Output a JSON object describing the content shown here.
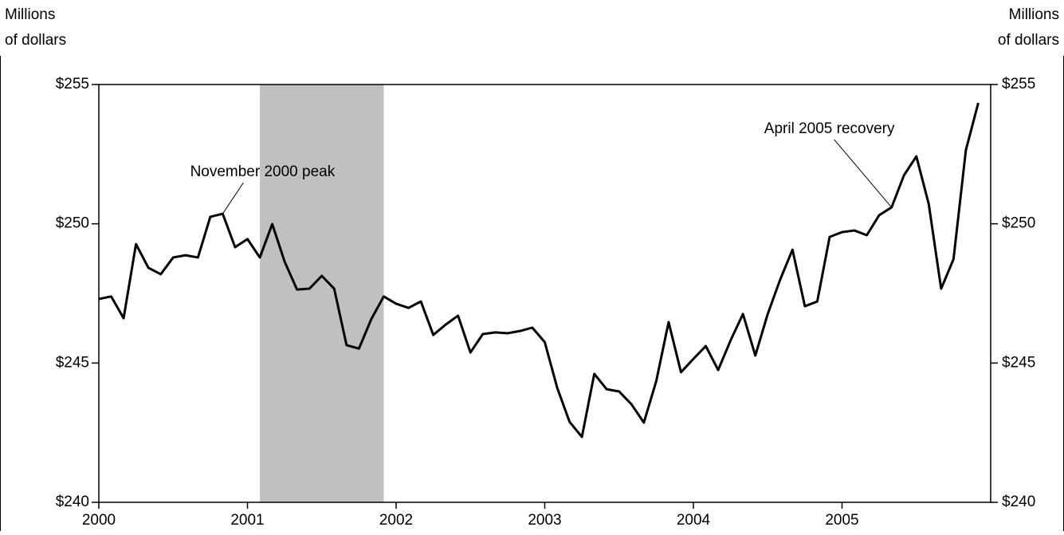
{
  "chart_data": {
    "type": "line",
    "y_label": [
      "Millions",
      "of dollars"
    ],
    "y2_label": [
      "Millions",
      "of dollars"
    ],
    "color": "#000000",
    "shade_color": "#c0c0c0",
    "shaded_x": [
      2001.0833,
      2001.9167
    ],
    "xlim": [
      2000,
      2006
    ],
    "xticks": [
      2000,
      2001,
      2002,
      2003,
      2004,
      2005
    ],
    "ylim": [
      240,
      255
    ],
    "yticks": [
      {
        "value": 240,
        "label": "$240"
      },
      {
        "value": 245,
        "label": "$245"
      },
      {
        "value": 250,
        "label": "$250"
      },
      {
        "value": 255,
        "label": "$255"
      }
    ],
    "y2lim": [
      240,
      255
    ],
    "y2ticks": [
      {
        "value": 240,
        "label": "$240"
      },
      {
        "value": 245,
        "label": "$245"
      },
      {
        "value": 250,
        "label": "$250"
      },
      {
        "value": 255,
        "label": "$255"
      }
    ],
    "x": [
      2000,
      2000.0833,
      2000.1667,
      2000.25,
      2000.3333,
      2000.4167,
      2000.5,
      2000.5833,
      2000.6667,
      2000.75,
      2000.8333,
      2000.9167,
      2001,
      2001.0833,
      2001.1667,
      2001.25,
      2001.3333,
      2001.4167,
      2001.5,
      2001.5833,
      2001.6667,
      2001.75,
      2001.8333,
      2001.9167,
      2002,
      2002.0833,
      2002.1667,
      2002.25,
      2002.3333,
      2002.4167,
      2002.5,
      2002.5833,
      2002.6667,
      2002.75,
      2002.8333,
      2002.9167,
      2003,
      2003.0833,
      2003.1667,
      2003.25,
      2003.3333,
      2003.4167,
      2003.5,
      2003.5833,
      2003.6667,
      2003.75,
      2003.8333,
      2003.9167,
      2004,
      2004.0833,
      2004.1667,
      2004.25,
      2004.3333,
      2004.4167,
      2004.5,
      2004.5833,
      2004.6667,
      2004.75,
      2004.8333,
      2004.9167,
      2005,
      2005.0833,
      2005.1667,
      2005.25,
      2005.3333,
      2005.4167,
      2005.5,
      2005.5833,
      2005.6667,
      2005.75,
      2005.8333,
      2005.9167
    ],
    "values": [
      247.3,
      247.39,
      246.61,
      249.27,
      248.42,
      248.19,
      248.79,
      248.87,
      248.79,
      250.25,
      250.36,
      249.16,
      249.45,
      248.79,
      249.99,
      248.64,
      247.64,
      247.67,
      248.13,
      247.67,
      245.64,
      245.52,
      246.58,
      247.39,
      247.13,
      246.98,
      247.21,
      246.01,
      246.38,
      246.7,
      245.38,
      246.04,
      246.1,
      246.07,
      246.15,
      246.27,
      245.75,
      244.12,
      242.89,
      242.35,
      244.61,
      244.06,
      243.98,
      243.52,
      242.86,
      244.35,
      246.47,
      244.67,
      245.15,
      245.61,
      244.75,
      245.81,
      246.76,
      245.27,
      246.76,
      247.99,
      249.07,
      247.04,
      247.21,
      249.53,
      249.7,
      249.76,
      249.59,
      250.31,
      250.59,
      251.74,
      252.42,
      250.71,
      247.67,
      248.73,
      252.65,
      254.34
    ],
    "annotations": [
      {
        "text": "November 2000 peak",
        "x": 2000.8333
      },
      {
        "text": "April 2005 recovery",
        "x": 2005.3333
      }
    ]
  }
}
